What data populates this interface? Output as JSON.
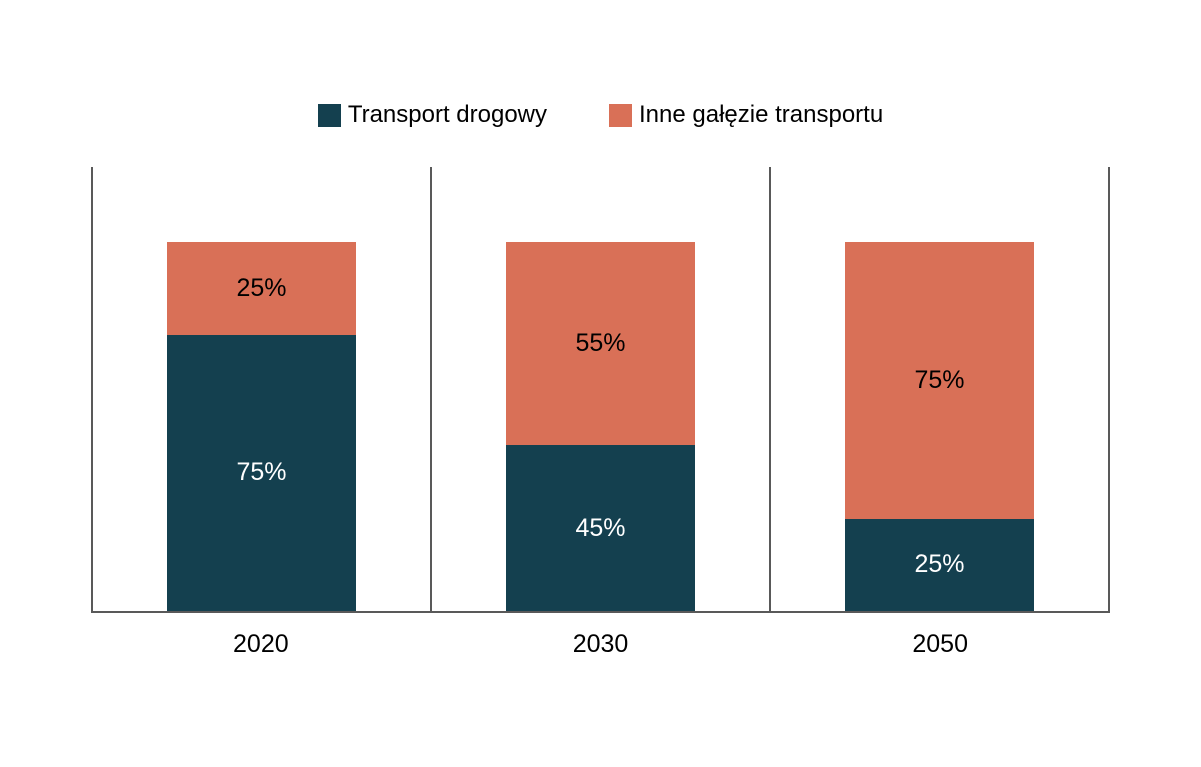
{
  "page": {
    "background": "#FFFFFF"
  },
  "chart_data": {
    "type": "bar",
    "variant": "100-percent-stacked-column",
    "title": "",
    "xlabel": "",
    "ylabel": "",
    "categories": [
      "2020",
      "2030",
      "2050"
    ],
    "series": [
      {
        "name": "Transport drogowy",
        "color": "#14404F",
        "label_color": "#FFFFFF",
        "values": [
          75,
          45,
          25
        ]
      },
      {
        "name": "Inne gałęzie transportu",
        "color": "#D97057",
        "label_color": "#000000",
        "values": [
          25,
          55,
          75
        ]
      }
    ],
    "data_labels": {
      "visible": true,
      "suffix": "%"
    },
    "legend_position": "top",
    "grid": false,
    "axis_color": "#595959",
    "bar_height_fraction_of_panel": 0.83
  }
}
